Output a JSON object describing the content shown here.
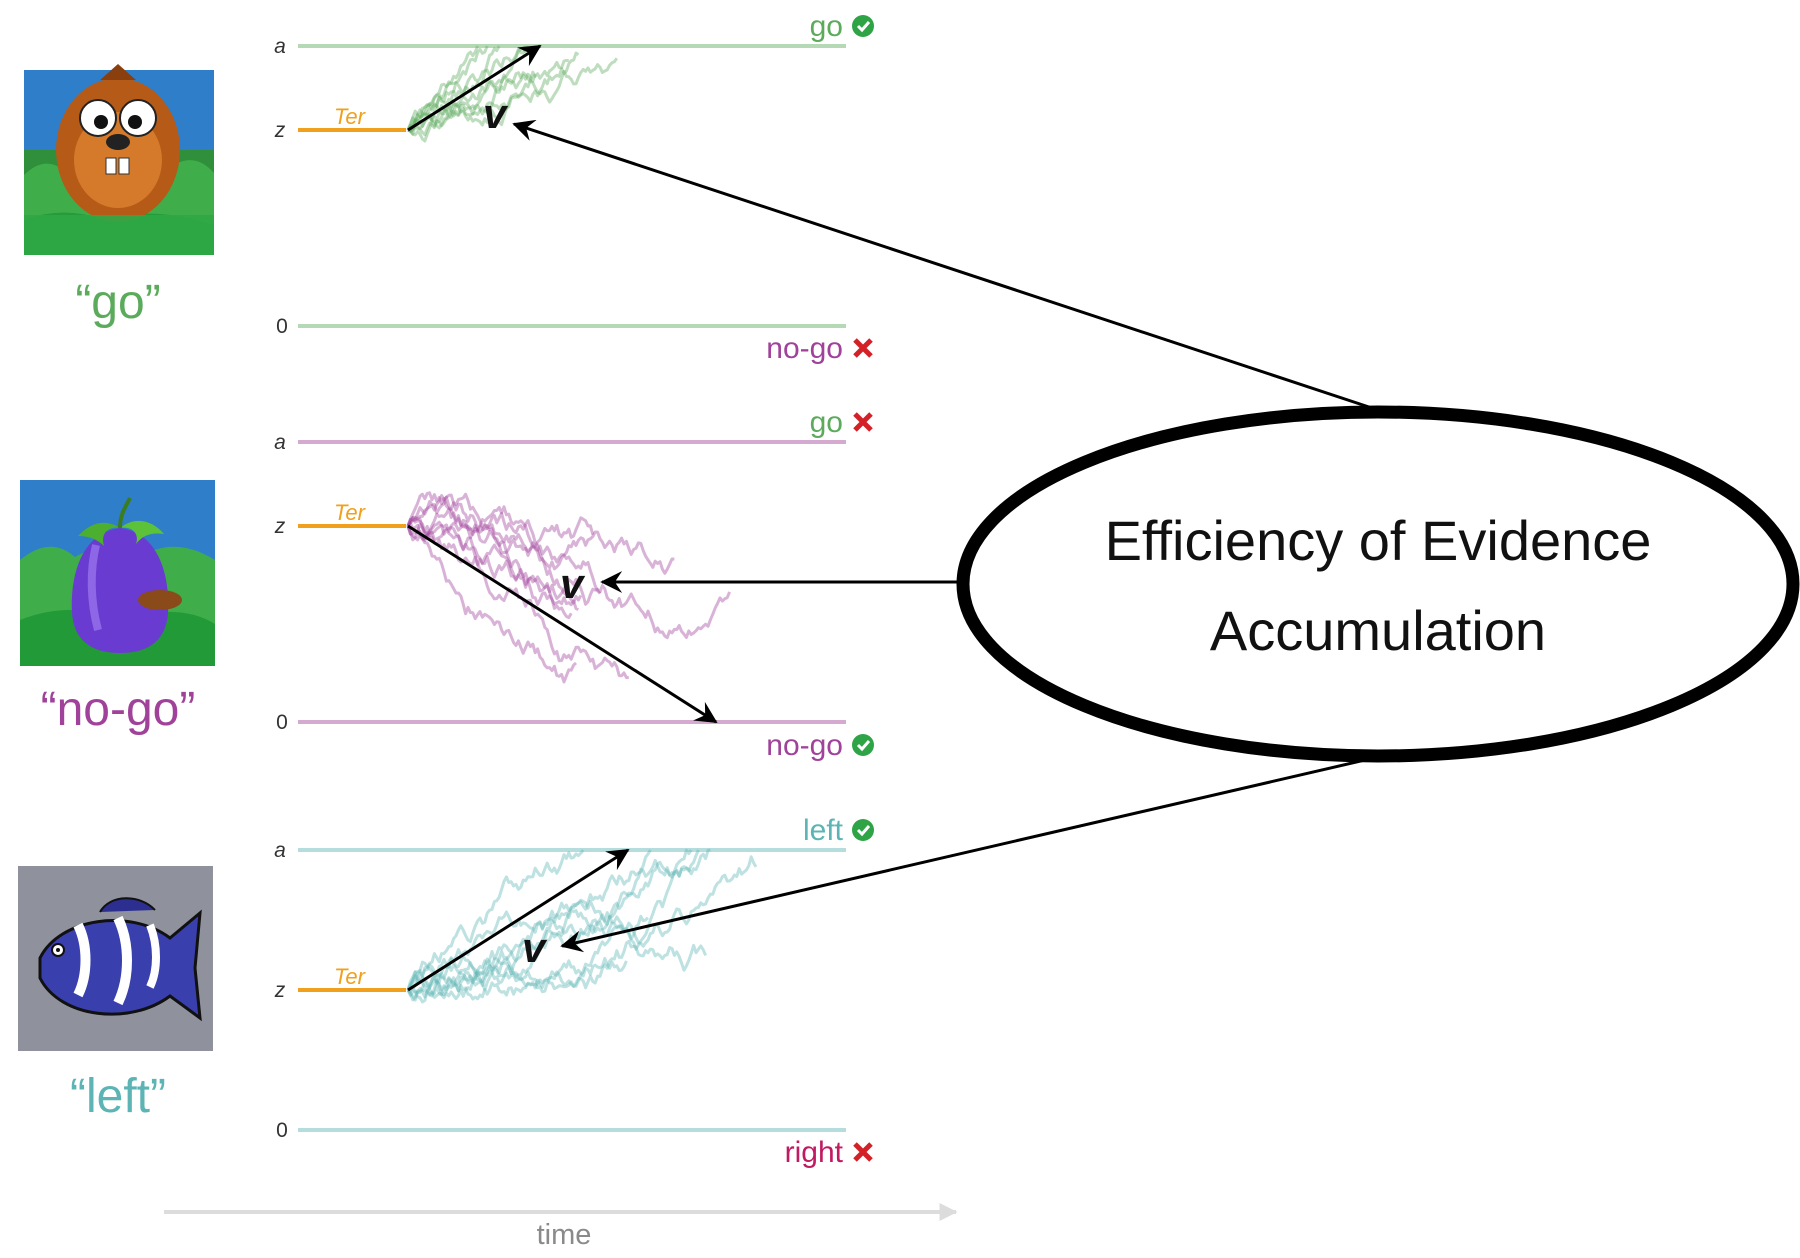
{
  "colors": {
    "go": "#5cab5c",
    "nogo": "#a0429a",
    "left": "#5cb4b4",
    "right": "#c21a62",
    "ter": "#f0a01c",
    "check": "#2ea446",
    "cross": "#d42127",
    "time_axis": "#dcdcdc"
  },
  "panels": [
    {
      "stimulus_icon": "mole-icon",
      "stimulus_label": "“go”",
      "color_key": "go",
      "axis": {
        "a": "a",
        "z": "z",
        "zero": "0"
      },
      "ter_label": "Ter",
      "drift_label": "v",
      "upper_bound": {
        "label": "go",
        "label_color_key": "go",
        "mark": "check"
      },
      "lower_bound": {
        "label": "no-go",
        "label_color_key": "nogo",
        "mark": "cross"
      }
    },
    {
      "stimulus_icon": "eggplant-icon",
      "stimulus_label": "“no-go”",
      "color_key": "nogo",
      "axis": {
        "a": "a",
        "z": "z",
        "zero": "0"
      },
      "ter_label": "Ter",
      "drift_label": "v",
      "upper_bound": {
        "label": "go",
        "label_color_key": "go",
        "mark": "cross"
      },
      "lower_bound": {
        "label": "no-go",
        "label_color_key": "nogo",
        "mark": "check"
      }
    },
    {
      "stimulus_icon": "fish-icon",
      "stimulus_label": "“left”",
      "color_key": "left",
      "axis": {
        "a": "a",
        "z": "z",
        "zero": "0"
      },
      "ter_label": "Ter",
      "drift_label": "v",
      "upper_bound": {
        "label": "left",
        "label_color_key": "left",
        "mark": "check"
      },
      "lower_bound": {
        "label": "right",
        "label_color_key": "right",
        "mark": "cross"
      }
    }
  ],
  "concept": {
    "line1": "Efficiency of Evidence",
    "line2": "Accumulation"
  },
  "time_axis": {
    "label": "time"
  }
}
